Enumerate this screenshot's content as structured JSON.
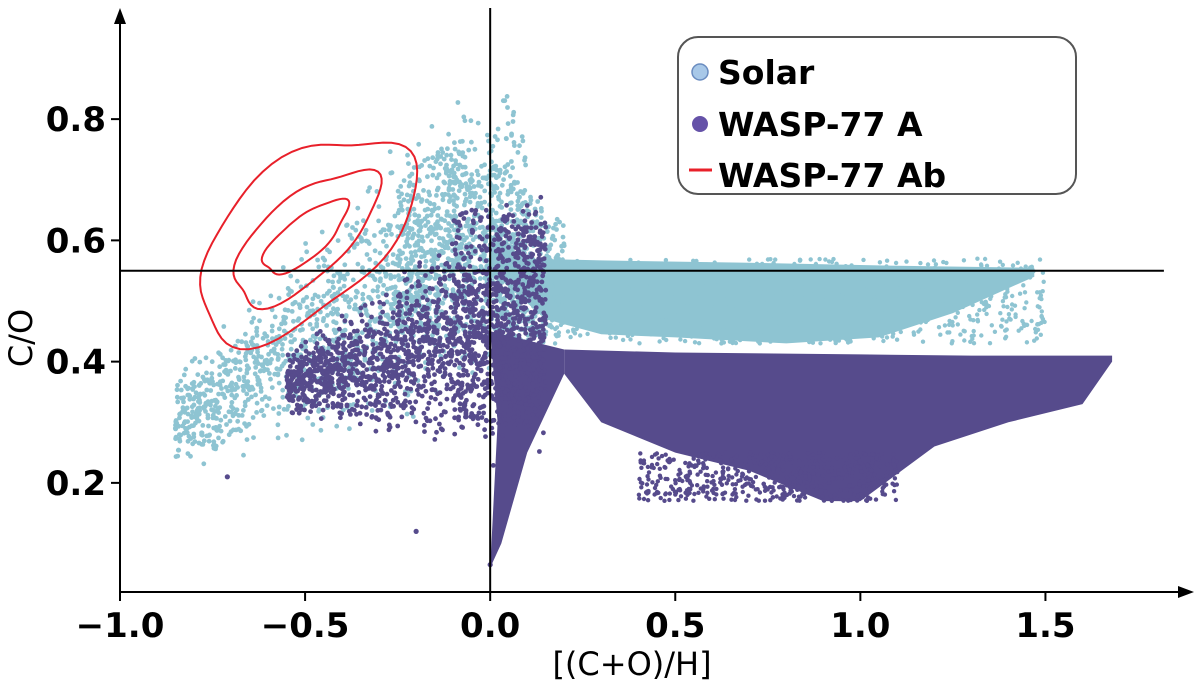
{
  "chart_data": {
    "type": "scatter",
    "title": "",
    "xlabel": "[(C+O)/H]",
    "ylabel": "C/O",
    "xlim": [
      -1.0,
      1.85
    ],
    "ylim": [
      0.02,
      0.98
    ],
    "xticks": [
      {
        "value": -1.0,
        "label": "−1.0"
      },
      {
        "value": -0.5,
        "label": "−0.5"
      },
      {
        "value": 0.0,
        "label": "0.0"
      },
      {
        "value": 0.5,
        "label": "0.5"
      },
      {
        "value": 1.0,
        "label": "1.0"
      },
      {
        "value": 1.5,
        "label": "1.5"
      }
    ],
    "yticks": [
      {
        "value": 0.2,
        "label": "0.2"
      },
      {
        "value": 0.4,
        "label": "0.4"
      },
      {
        "value": 0.6,
        "label": "0.6"
      },
      {
        "value": 0.8,
        "label": "0.8"
      }
    ],
    "grid": false,
    "legend_position": "top-right",
    "reference_lines": {
      "x": 0.0,
      "y": 0.55
    },
    "series": [
      {
        "name": "Solar",
        "kind": "scatter",
        "color": "#8ec4d2",
        "legend_color": "#a8c8e8",
        "envelope": {
          "left": [
            [
              -0.85,
              0.29
            ],
            [
              -0.7,
              0.41
            ],
            [
              -0.55,
              0.58
            ],
            [
              -0.3,
              0.83
            ],
            [
              -0.2,
              0.81
            ],
            [
              -0.1,
              0.72
            ]
          ],
          "upper": [
            [
              0.0,
              0.61
            ],
            [
              0.1,
              0.57
            ],
            [
              0.3,
              0.567
            ],
            [
              0.7,
              0.563
            ],
            [
              1.1,
              0.558
            ],
            [
              1.47,
              0.555
            ]
          ],
          "lower": [
            [
              1.47,
              0.54
            ],
            [
              1.25,
              0.48
            ],
            [
              1.05,
              0.44
            ],
            [
              0.8,
              0.43
            ],
            [
              0.5,
              0.44
            ],
            [
              0.3,
              0.445
            ],
            [
              0.15,
              0.47
            ]
          ],
          "inner": [
            [
              0.0,
              0.35
            ],
            [
              -0.05,
              0.2
            ],
            [
              -0.15,
              0.1
            ],
            [
              -0.3,
              0.12
            ],
            [
              -0.45,
              0.22
            ],
            [
              -0.55,
              0.33
            ],
            [
              -0.7,
              0.41
            ]
          ]
        }
      },
      {
        "name": "WASP-77 A",
        "kind": "scatter",
        "color": "#564b8c",
        "legend_color": "#6552a8",
        "envelope": {
          "upper": [
            [
              0.0,
              0.45
            ],
            [
              0.2,
              0.42
            ],
            [
              0.5,
              0.415
            ],
            [
              1.0,
              0.412
            ],
            [
              1.3,
              0.41
            ],
            [
              1.68,
              0.41
            ]
          ],
          "lower": [
            [
              1.68,
              0.4
            ],
            [
              1.6,
              0.33
            ],
            [
              1.4,
              0.3
            ],
            [
              1.2,
              0.26
            ],
            [
              1.0,
              0.17
            ],
            [
              0.9,
              0.17
            ],
            [
              0.7,
              0.22
            ],
            [
              0.5,
              0.25
            ],
            [
              0.3,
              0.3
            ],
            [
              0.2,
              0.38
            ]
          ],
          "spike": [
            [
              0.2,
              0.38
            ],
            [
              0.1,
              0.25
            ],
            [
              0.03,
              0.1
            ],
            [
              0.0,
              0.07
            ]
          ],
          "left": [
            [
              -0.68,
              0.21
            ],
            [
              -0.45,
              0.3
            ],
            [
              -0.25,
              0.41
            ],
            [
              -0.15,
              0.55
            ],
            [
              -0.05,
              0.7
            ],
            [
              0.0,
              0.6
            ]
          ]
        }
      },
      {
        "name": "WASP-77 Ab",
        "kind": "contour",
        "color": "#e8202a",
        "center": {
          "x": -0.5,
          "y": 0.605
        },
        "levels": [
          "outer",
          "middle",
          "inner"
        ]
      }
    ]
  }
}
